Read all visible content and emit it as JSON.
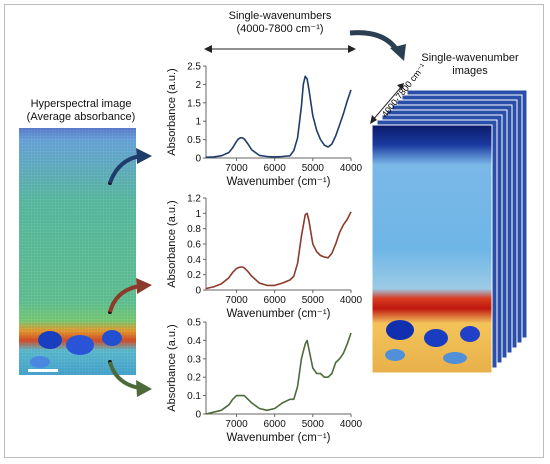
{
  "labels": {
    "top_line1": "Single-wavenumbers",
    "top_line2": "(4000-7800 cm⁻¹)",
    "left_line1": "Hyperspectral image",
    "left_line2": "(Average absorbance)",
    "right_line1": "Single-wavenumber",
    "right_line2": "images",
    "stack_range": "4000-7800 cm⁻¹"
  },
  "colors": {
    "blue": "#1f3d6b",
    "red": "#8b3a2b",
    "green": "#4c6a3a",
    "dark_arrow": "#2c3f52"
  },
  "chart_data": [
    {
      "type": "line",
      "series_color": "#1f3d6b",
      "xlabel": "Wavenumber (cm⁻¹)",
      "ylabel": "Absorbance (a.u.)",
      "xlim": [
        7800,
        4000
      ],
      "ylim": [
        0,
        2.5
      ],
      "xticks": [
        7000,
        6000,
        5000,
        4000
      ],
      "yticks": [
        0,
        0.5,
        1,
        1.5,
        2,
        2.5
      ],
      "x": [
        7800,
        7600,
        7400,
        7200,
        7100,
        7000,
        6950,
        6900,
        6850,
        6800,
        6700,
        6600,
        6400,
        6200,
        6000,
        5800,
        5600,
        5500,
        5400,
        5300,
        5250,
        5200,
        5150,
        5100,
        5000,
        4900,
        4800,
        4700,
        4600,
        4500,
        4400,
        4300,
        4200,
        4100,
        4000
      ],
      "y": [
        0.02,
        0.03,
        0.06,
        0.15,
        0.28,
        0.45,
        0.52,
        0.55,
        0.55,
        0.52,
        0.38,
        0.22,
        0.07,
        0.04,
        0.03,
        0.04,
        0.06,
        0.2,
        0.55,
        1.4,
        2.0,
        2.22,
        2.15,
        1.85,
        1.15,
        0.75,
        0.5,
        0.35,
        0.3,
        0.38,
        0.6,
        0.9,
        1.2,
        1.55,
        1.85
      ]
    },
    {
      "type": "line",
      "series_color": "#8b3a2b",
      "xlabel": "Wavenumber (cm⁻¹)",
      "ylabel": "Absorbance (a.u.)",
      "xlim": [
        7800,
        4000
      ],
      "ylim": [
        0,
        1.2
      ],
      "xticks": [
        7000,
        6000,
        5000,
        4000
      ],
      "yticks": [
        0,
        0.2,
        0.4,
        0.6,
        0.8,
        1,
        1.2
      ],
      "x": [
        7800,
        7600,
        7400,
        7200,
        7100,
        7000,
        6900,
        6850,
        6800,
        6700,
        6600,
        6400,
        6200,
        6000,
        5800,
        5600,
        5500,
        5400,
        5300,
        5200,
        5150,
        5100,
        5000,
        4900,
        4800,
        4700,
        4600,
        4500,
        4400,
        4300,
        4200,
        4100,
        4000
      ],
      "y": [
        0.02,
        0.04,
        0.08,
        0.16,
        0.23,
        0.28,
        0.3,
        0.3,
        0.29,
        0.24,
        0.18,
        0.09,
        0.06,
        0.06,
        0.09,
        0.13,
        0.18,
        0.35,
        0.7,
        0.98,
        1.0,
        0.9,
        0.6,
        0.5,
        0.45,
        0.43,
        0.42,
        0.48,
        0.6,
        0.75,
        0.85,
        0.92,
        1.02
      ]
    },
    {
      "type": "line",
      "series_color": "#4c6a3a",
      "xlabel": "Wavenumber (cm⁻¹)",
      "ylabel": "Absorbance (a.u.)",
      "xlim": [
        7800,
        4000
      ],
      "ylim": [
        0,
        0.5
      ],
      "xticks": [
        7000,
        6000,
        5000,
        4000
      ],
      "yticks": [
        0,
        0.1,
        0.2,
        0.3,
        0.4,
        0.5
      ],
      "x": [
        7800,
        7600,
        7400,
        7200,
        7100,
        7000,
        6900,
        6800,
        6700,
        6600,
        6400,
        6200,
        6000,
        5800,
        5600,
        5500,
        5400,
        5300,
        5200,
        5150,
        5100,
        5000,
        4900,
        4800,
        4700,
        4600,
        4500,
        4400,
        4300,
        4200,
        4100,
        4000
      ],
      "y": [
        0.0,
        0.01,
        0.02,
        0.05,
        0.08,
        0.1,
        0.1,
        0.1,
        0.08,
        0.06,
        0.03,
        0.02,
        0.03,
        0.06,
        0.08,
        0.08,
        0.15,
        0.3,
        0.38,
        0.4,
        0.35,
        0.25,
        0.22,
        0.22,
        0.2,
        0.2,
        0.22,
        0.28,
        0.3,
        0.33,
        0.38,
        0.44
      ]
    }
  ]
}
